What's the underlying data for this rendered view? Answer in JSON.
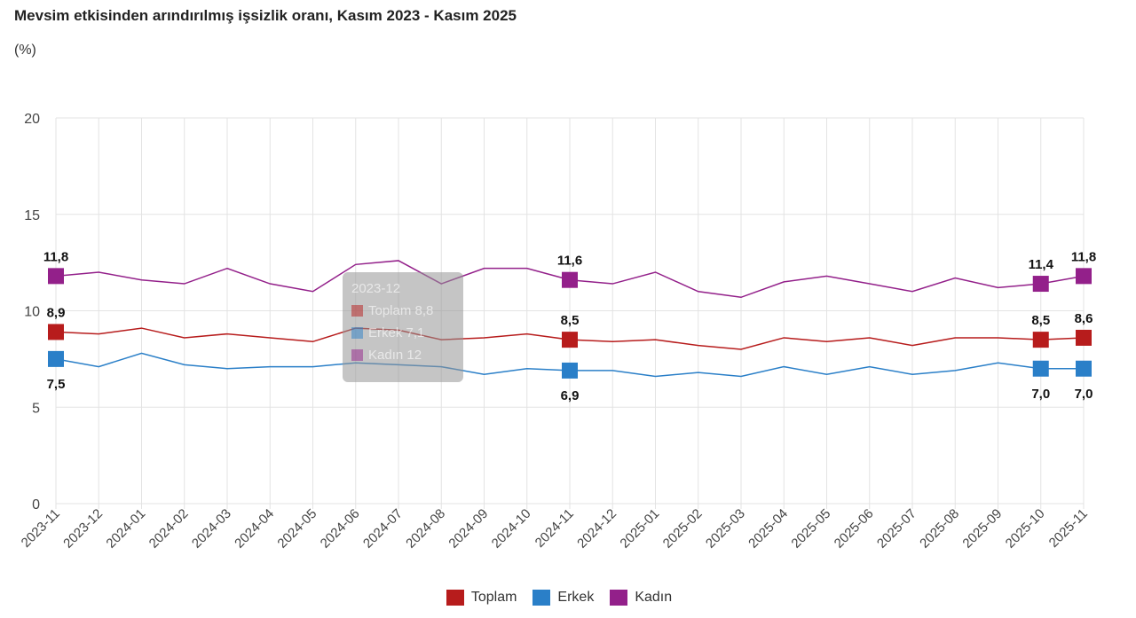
{
  "title": "Mevsim etkisinden arındırılmış işsizlik oranı, Kasım 2023 - Kasım 2025",
  "unit": "(%)",
  "chart_data": {
    "type": "line",
    "title": "Mevsim etkisinden arındırılmış işsizlik oranı, Kasım 2023 - Kasım 2025",
    "ylabel": "(%)",
    "ylim": [
      0,
      20
    ],
    "yticks": [
      "0",
      "5",
      "10",
      "15",
      "20"
    ],
    "ytick_values": [
      0,
      5,
      10,
      15,
      20
    ],
    "grid": true,
    "legend_position": "bottom",
    "categories": [
      "2023-11",
      "2023-12",
      "2024-01",
      "2024-02",
      "2024-03",
      "2024-04",
      "2024-05",
      "2024-06",
      "2024-07",
      "2024-08",
      "2024-09",
      "2024-10",
      "2024-11",
      "2024-12",
      "2025-01",
      "2025-02",
      "2025-03",
      "2025-04",
      "2025-05",
      "2025-06",
      "2025-07",
      "2025-08",
      "2025-09",
      "2025-10",
      "2025-11"
    ],
    "series": [
      {
        "name": "Toplam",
        "color": "#b71c1c",
        "values": [
          8.9,
          8.8,
          9.1,
          8.6,
          8.8,
          8.6,
          8.4,
          9.1,
          9.0,
          8.5,
          8.6,
          8.8,
          8.5,
          8.4,
          8.5,
          8.2,
          8.0,
          8.6,
          8.4,
          8.6,
          8.2,
          8.6,
          8.6,
          8.5,
          8.6
        ]
      },
      {
        "name": "Erkek",
        "color": "#2a7fc8",
        "values": [
          7.5,
          7.1,
          7.8,
          7.2,
          7.0,
          7.1,
          7.1,
          7.3,
          7.2,
          7.1,
          6.7,
          7.0,
          6.9,
          6.9,
          6.6,
          6.8,
          6.6,
          7.1,
          6.7,
          7.1,
          6.7,
          6.9,
          7.3,
          7.0,
          7.0
        ]
      },
      {
        "name": "Kadın",
        "color": "#93208a",
        "values": [
          11.8,
          12.0,
          11.6,
          11.4,
          12.2,
          11.4,
          11.0,
          12.4,
          12.6,
          11.4,
          12.2,
          12.2,
          11.6,
          11.4,
          12.0,
          11.0,
          10.7,
          11.5,
          11.8,
          11.4,
          11.0,
          11.7,
          11.2,
          11.4,
          11.8
        ]
      }
    ],
    "marked_points": [
      0,
      12,
      23,
      24
    ],
    "data_labels": {
      "Toplam": [
        "8,9",
        "8,5",
        "8,5",
        "8,6"
      ],
      "Erkek": [
        "7,5",
        "6,9",
        "7,0",
        "7,0"
      ],
      "Kadın": [
        "11,8",
        "11,6",
        "11,4",
        "11,8"
      ]
    },
    "tooltip": {
      "title": "2023-12",
      "rows": [
        {
          "label": "Toplam  8,8"
        },
        {
          "label": "Erkek  7,1"
        },
        {
          "label": "Kadın  12"
        }
      ]
    }
  }
}
